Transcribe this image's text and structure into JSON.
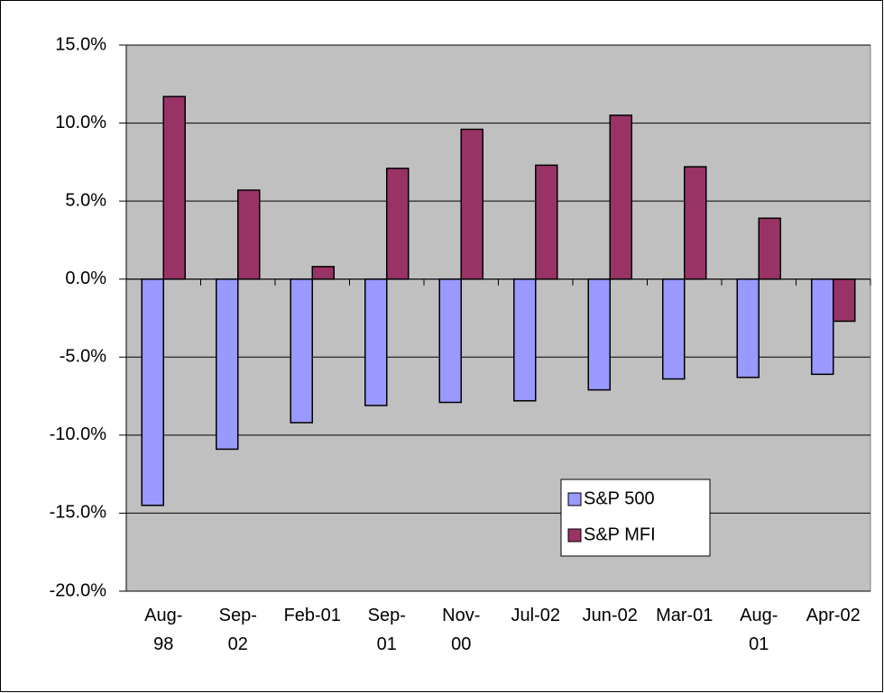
{
  "chart_data": {
    "type": "bar",
    "categories": [
      "Aug-98",
      "Sep-02",
      "Feb-01",
      "Sep-01",
      "Nov-00",
      "Jul-02",
      "Jun-02",
      "Mar-01",
      "Aug-01",
      "Apr-02"
    ],
    "series": [
      {
        "name": "S&P 500",
        "color": "#9999ff",
        "values": [
          -14.5,
          -10.9,
          -9.2,
          -8.1,
          -7.9,
          -7.8,
          -7.1,
          -6.4,
          -6.3,
          -6.1
        ]
      },
      {
        "name": "S&P MFI",
        "color": "#993366",
        "values": [
          11.7,
          5.7,
          0.8,
          7.1,
          9.6,
          7.3,
          10.5,
          7.2,
          3.9,
          -2.7
        ]
      }
    ],
    "ylim": [
      -20,
      15
    ],
    "yticks": [
      {
        "value": -20,
        "label": "-20.0%"
      },
      {
        "value": -15,
        "label": "-15.0%"
      },
      {
        "value": -10,
        "label": "-10.0%"
      },
      {
        "value": -5,
        "label": "-5.0%"
      },
      {
        "value": 0,
        "label": "0.0%"
      },
      {
        "value": 5,
        "label": "5.0%"
      },
      {
        "value": 10,
        "label": "10.0%"
      },
      {
        "value": 15,
        "label": "15.0%"
      }
    ],
    "grid": true,
    "legend": "lower-right",
    "plot_background": "#c0c0c0"
  }
}
